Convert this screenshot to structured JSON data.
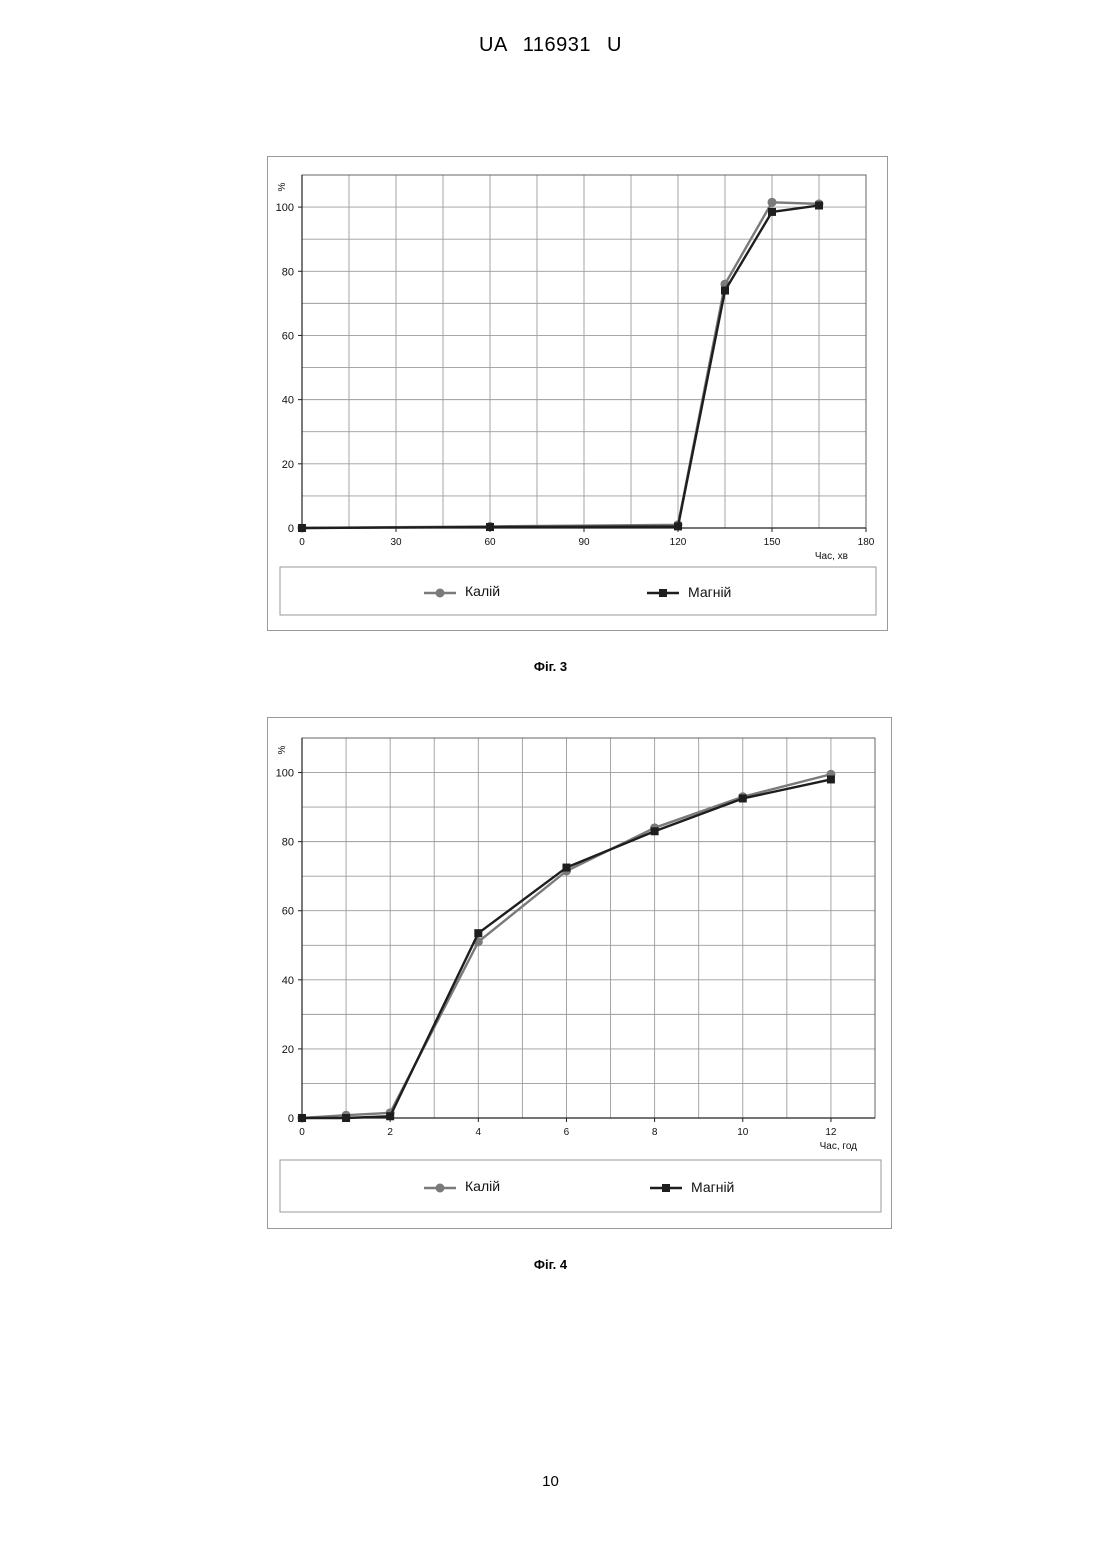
{
  "header": {
    "doc_number": "UA 116931 U"
  },
  "page_number": "10",
  "figures": [
    {
      "caption": "Фіг. 3",
      "ylabel": "%",
      "xlabel": "Час, хв",
      "legend": {
        "series_1": "Калій",
        "series_2": "Магній"
      }
    },
    {
      "caption": "Фіг. 4",
      "ylabel": "%",
      "xlabel": "Час, год",
      "legend": {
        "series_1": "Калій",
        "series_2": "Магній"
      }
    }
  ],
  "colors": {
    "series_1": "#7a7a7a",
    "series_2": "#1e1e1e",
    "grid": "#9c9c9c",
    "frame": "#9a9a9a"
  },
  "chart_data": [
    {
      "type": "line",
      "ylabel": "%",
      "xlabel": "Час, хв",
      "xlim": [
        0,
        180
      ],
      "ylim": [
        0,
        110
      ],
      "xticks": [
        0,
        30,
        60,
        90,
        120,
        150,
        180
      ],
      "yticks": [
        0,
        20,
        40,
        60,
        80,
        100
      ],
      "grid": true,
      "legend_position": "bottom",
      "series": [
        {
          "name": "Калій",
          "marker": "circle",
          "x": [
            0,
            60,
            120,
            135,
            150,
            165
          ],
          "y": [
            0,
            0.5,
            1,
            76,
            101.5,
            101
          ]
        },
        {
          "name": "Магній",
          "marker": "square",
          "x": [
            0,
            60,
            120,
            135,
            150,
            165
          ],
          "y": [
            0,
            0.3,
            0.5,
            74,
            98.5,
            100.5
          ]
        }
      ]
    },
    {
      "type": "line",
      "ylabel": "%",
      "xlabel": "Час, год",
      "xlim": [
        0,
        13
      ],
      "ylim": [
        0,
        110
      ],
      "xticks": [
        0,
        2,
        4,
        6,
        8,
        10,
        12
      ],
      "yticks": [
        0,
        20,
        40,
        60,
        80,
        100
      ],
      "grid": true,
      "legend_position": "bottom",
      "series": [
        {
          "name": "Калій",
          "marker": "circle",
          "x": [
            0,
            1,
            2,
            4,
            6,
            8,
            10,
            12
          ],
          "y": [
            0,
            0.8,
            1.5,
            51,
            71.5,
            84,
            93,
            99.5
          ]
        },
        {
          "name": "Магній",
          "marker": "square",
          "x": [
            0,
            1,
            2,
            4,
            6,
            8,
            10,
            12
          ],
          "y": [
            0,
            0,
            0.5,
            53.5,
            72.5,
            83,
            92.5,
            98
          ]
        }
      ]
    }
  ]
}
